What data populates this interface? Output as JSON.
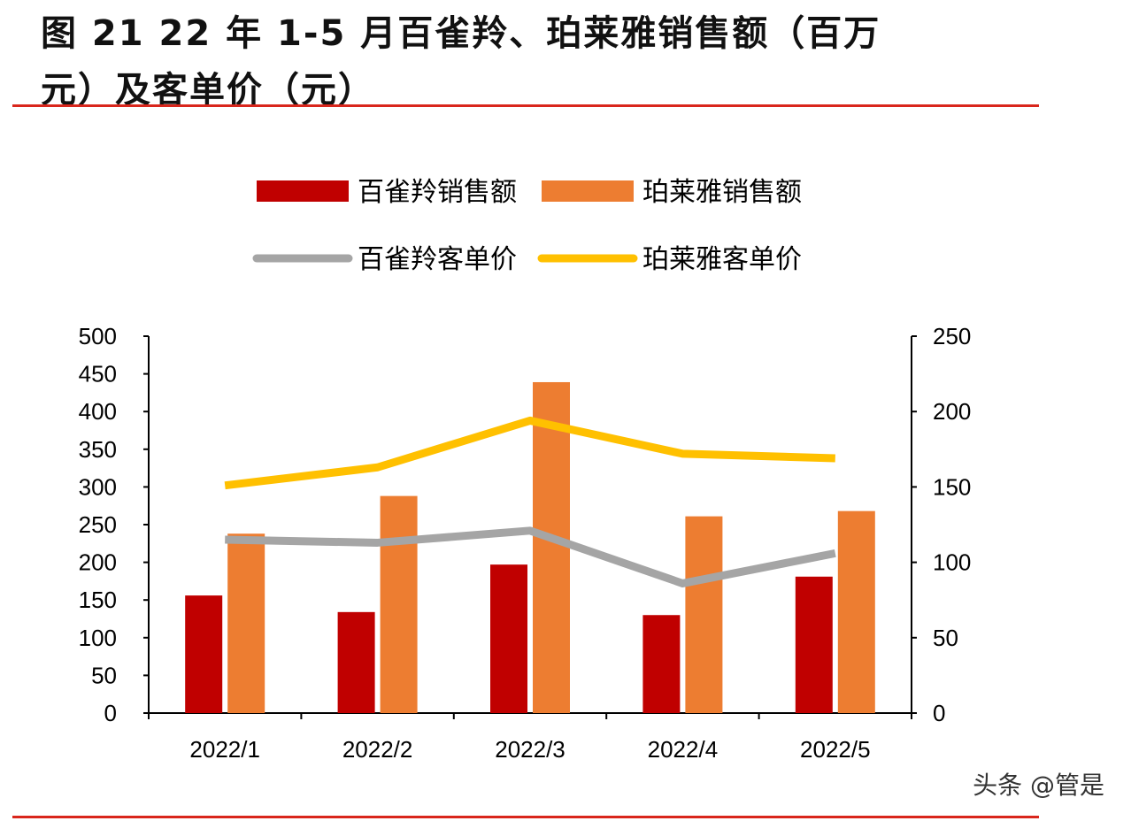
{
  "title_line1": "图 21 22 年 1-5 月百雀羚、珀莱雅销售额（百万",
  "title_line2": "元）及客单价（元）",
  "watermark": "头条 @管是",
  "chart_data": {
    "type": "bar+line",
    "categories": [
      "2022/1",
      "2022/2",
      "2022/3",
      "2022/4",
      "2022/5"
    ],
    "series": [
      {
        "name": "百雀羚销售额",
        "type": "bar",
        "axis": "left",
        "color": "#c00000",
        "values": [
          156,
          134,
          197,
          130,
          181
        ]
      },
      {
        "name": "珀莱雅销售额",
        "type": "bar",
        "axis": "left",
        "color": "#ed7d31",
        "values": [
          238,
          288,
          439,
          261,
          268
        ]
      },
      {
        "name": "百雀羚客单价",
        "type": "line",
        "axis": "right",
        "color": "#a5a5a5",
        "values": [
          115,
          113,
          121,
          86,
          106
        ]
      },
      {
        "name": "珀莱雅客单价",
        "type": "line",
        "axis": "right",
        "color": "#ffc000",
        "values": [
          151,
          163,
          194,
          172,
          169
        ]
      }
    ],
    "y_left": {
      "range": [
        0,
        500
      ],
      "ticks": [
        0,
        50,
        100,
        150,
        200,
        250,
        300,
        350,
        400,
        450,
        500
      ]
    },
    "y_right": {
      "range": [
        0,
        250
      ],
      "ticks": [
        0,
        50,
        100,
        150,
        200,
        250
      ]
    },
    "legend_position": "top",
    "grid": false
  }
}
